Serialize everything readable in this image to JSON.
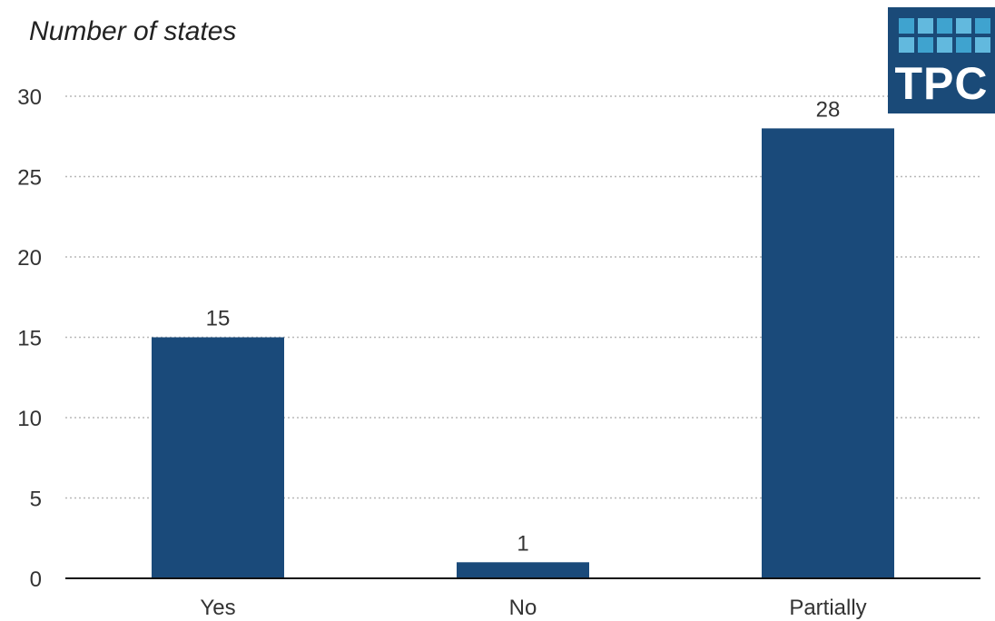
{
  "chart_data": {
    "type": "bar",
    "title": "",
    "ylabel": "Number of states",
    "xlabel": "",
    "categories": [
      "Yes",
      "No",
      "Partially"
    ],
    "values": [
      15,
      1,
      28
    ],
    "data_labels": [
      "15",
      "1",
      "28"
    ],
    "ylim": [
      0,
      30
    ],
    "yticks": [
      0,
      5,
      10,
      15,
      20,
      25,
      30
    ],
    "grid": true,
    "legend": "none",
    "bar_color": "#1a4a7a"
  },
  "logo": {
    "text": "TPC",
    "color": "#1a4a78",
    "tile_colors": [
      "#3fa3cf",
      "#62b9de"
    ]
  }
}
